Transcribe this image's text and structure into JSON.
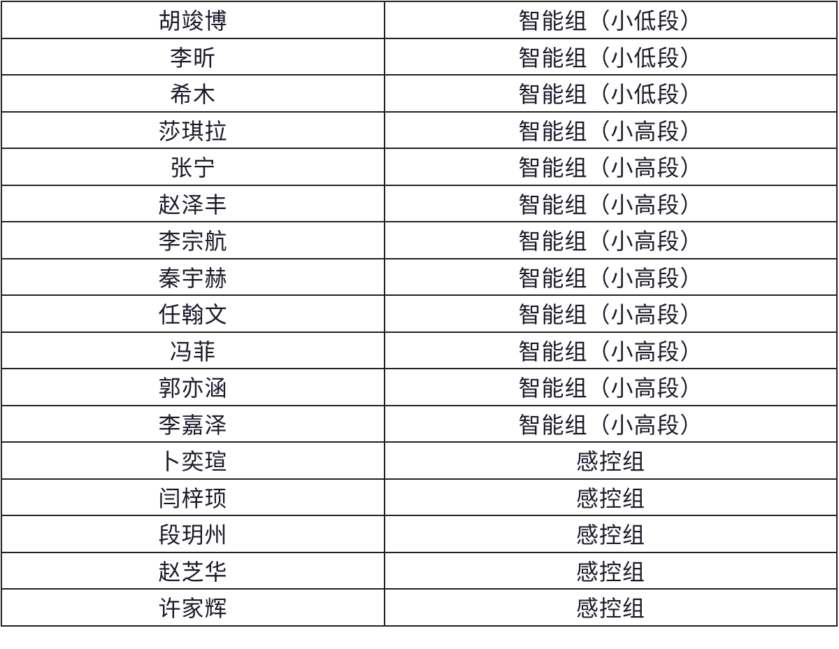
{
  "rows": [
    {
      "name": "胡竣博",
      "group": "智能组（小低段）"
    },
    {
      "name": "李昕",
      "group": "智能组（小低段）"
    },
    {
      "name": "希木",
      "group": "智能组（小低段）"
    },
    {
      "name": "莎琪拉",
      "group": "智能组（小高段）"
    },
    {
      "name": "张宁",
      "group": "智能组（小高段）"
    },
    {
      "name": "赵泽丰",
      "group": "智能组（小高段）"
    },
    {
      "name": "李宗航",
      "group": "智能组（小高段）"
    },
    {
      "name": "秦宇赫",
      "group": "智能组（小高段）"
    },
    {
      "name": "任翰文",
      "group": "智能组（小高段）"
    },
    {
      "name": "冯菲",
      "group": "智能组（小高段）"
    },
    {
      "name": "郭亦涵",
      "group": "智能组（小高段）"
    },
    {
      "name": "李嘉泽",
      "group": "智能组（小高段）"
    },
    {
      "name": "卜奕瑄",
      "group": "感控组"
    },
    {
      "name": "闫梓顼",
      "group": "感控组"
    },
    {
      "name": "段玥州",
      "group": "感控组"
    },
    {
      "name": "赵芝华",
      "group": "感控组"
    },
    {
      "name": "许家辉",
      "group": "感控组"
    }
  ]
}
